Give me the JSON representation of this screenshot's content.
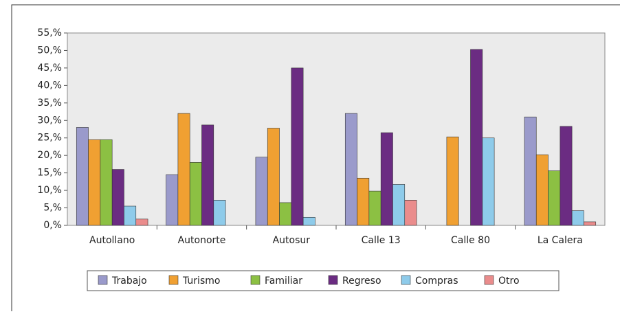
{
  "chart_data": {
    "type": "bar",
    "categories": [
      "Autollano",
      "Autonorte",
      "Autosur",
      "Calle 13",
      "Calle 80",
      "La Calera"
    ],
    "series": [
      {
        "name": "Trabajo",
        "color": "#9a9acb",
        "values": [
          28,
          14.5,
          19.5,
          32,
          0,
          31
        ]
      },
      {
        "name": "Turismo",
        "color": "#f0a032",
        "values": [
          24.5,
          32,
          27.8,
          13.5,
          25.3,
          20.2
        ]
      },
      {
        "name": "Familiar",
        "color": "#8cc043",
        "values": [
          24.5,
          18,
          6.5,
          9.8,
          0,
          15.6
        ]
      },
      {
        "name": "Regreso",
        "color": "#6b2c82",
        "values": [
          16,
          28.7,
          45,
          26.5,
          50.3,
          28.3
        ]
      },
      {
        "name": "Compras",
        "color": "#8ecbea",
        "values": [
          5.5,
          7.2,
          2.3,
          11.7,
          25,
          4.2
        ]
      },
      {
        "name": "Otro",
        "color": "#ea8c8c",
        "values": [
          1.8,
          0,
          0,
          7.2,
          0,
          1
        ]
      }
    ],
    "ylim": [
      0,
      55
    ],
    "yticks": [
      {
        "value": 0,
        "label": "0,%"
      },
      {
        "value": 5,
        "label": "5,%"
      },
      {
        "value": 10,
        "label": "10,%"
      },
      {
        "value": 15,
        "label": "15,%"
      },
      {
        "value": 20,
        "label": "20,%"
      },
      {
        "value": 25,
        "label": "25,%"
      },
      {
        "value": 30,
        "label": "30,%"
      },
      {
        "value": 35,
        "label": "35,%"
      },
      {
        "value": 40,
        "label": "40,%"
      },
      {
        "value": 45,
        "label": "45,%"
      },
      {
        "value": 50,
        "label": "50,%"
      },
      {
        "value": 55,
        "label": "55,%"
      }
    ],
    "grid": false,
    "legend": "bottom"
  }
}
